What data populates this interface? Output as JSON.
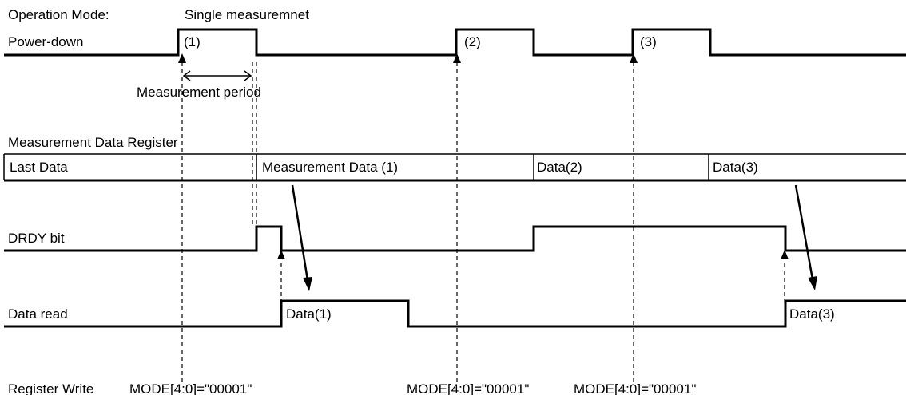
{
  "labels": {
    "operation_mode": "Operation Mode:",
    "single_measurement": "Single measuremnet",
    "power_down": "Power-down",
    "pulse_1": "(1)",
    "pulse_2": "(2)",
    "pulse_3": "(3)",
    "measurement_period": "Measurement period",
    "register_title": "Measurement Data Register",
    "last_data": "Last Data",
    "measurement_data_1": "Measurement Data (1)",
    "data_2": "Data(2)",
    "data_3": "Data(3)",
    "drdy_bit": "DRDY bit",
    "data_read": "Data read",
    "read_1": "Data(1)",
    "read_3": "Data(3)",
    "register_write": "Register Write",
    "mode_write_1": "MODE[4:0]=\"00001\"",
    "mode_write_2": "MODE[4:0]=\"00001\"",
    "mode_write_3": "MODE[4:0]=\"00001\""
  }
}
